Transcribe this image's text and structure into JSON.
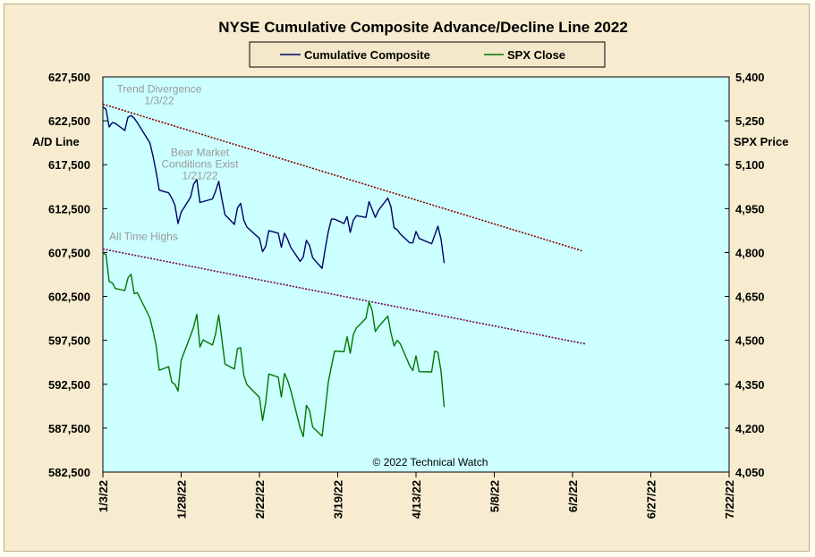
{
  "chart_data": {
    "type": "line",
    "title": "NYSE Cumulative  Composite  Advance/Decline  Line  2022",
    "ylabel_left": "A/D Line",
    "ylabel_right": "SPX Price",
    "credit": "© 2022 Technical  Watch",
    "legend": {
      "placement": "top-center"
    },
    "grid": false,
    "x_ticks": [
      "1/3/22",
      "1/28/22",
      "2/22/22",
      "3/19/22",
      "4/13/22",
      "5/8/22",
      "6/2/22",
      "6/27/22",
      "7/22/22"
    ],
    "x_range": [
      "2022-01-03",
      "2022-07-22"
    ],
    "y_left": {
      "range": [
        582500,
        627500
      ],
      "ticks": [
        "582,500",
        "587,500",
        "592,500",
        "597,500",
        "602,500",
        "607,500",
        "612,500",
        "617,500",
        "622,500",
        "627,500"
      ]
    },
    "y_right": {
      "range": [
        4050,
        5400
      ],
      "ticks": [
        "4,050",
        "4,200",
        "4,350",
        "4,500",
        "4,650",
        "4,800",
        "4,950",
        "5,100",
        "5,250",
        "5,400"
      ]
    },
    "series": [
      {
        "name": "Cumulative Composite",
        "axis": "left",
        "color": "#000066",
        "points": [
          [
            "2022-01-03",
            624100
          ],
          [
            "2022-01-04",
            623800
          ],
          [
            "2022-01-05",
            621800
          ],
          [
            "2022-01-06",
            622300
          ],
          [
            "2022-01-07",
            622200
          ],
          [
            "2022-01-10",
            621400
          ],
          [
            "2022-01-11",
            622900
          ],
          [
            "2022-01-12",
            623100
          ],
          [
            "2022-01-13",
            622800
          ],
          [
            "2022-01-14",
            622300
          ],
          [
            "2022-01-18",
            620000
          ],
          [
            "2022-01-19",
            618500
          ],
          [
            "2022-01-20",
            616700
          ],
          [
            "2022-01-21",
            614600
          ],
          [
            "2022-01-24",
            614300
          ],
          [
            "2022-01-25",
            613700
          ],
          [
            "2022-01-26",
            612900
          ],
          [
            "2022-01-27",
            610800
          ],
          [
            "2022-01-28",
            612100
          ],
          [
            "2022-01-31",
            613800
          ],
          [
            "2022-02-01",
            615300
          ],
          [
            "2022-02-02",
            615800
          ],
          [
            "2022-02-03",
            613200
          ],
          [
            "2022-02-04",
            613300
          ],
          [
            "2022-02-07",
            613600
          ],
          [
            "2022-02-08",
            614500
          ],
          [
            "2022-02-09",
            615600
          ],
          [
            "2022-02-10",
            613600
          ],
          [
            "2022-02-11",
            611800
          ],
          [
            "2022-02-14",
            610700
          ],
          [
            "2022-02-15",
            612600
          ],
          [
            "2022-02-16",
            613100
          ],
          [
            "2022-02-17",
            611200
          ],
          [
            "2022-02-18",
            610400
          ],
          [
            "2022-02-22",
            609100
          ],
          [
            "2022-02-23",
            607600
          ],
          [
            "2022-02-24",
            608200
          ],
          [
            "2022-02-25",
            610000
          ],
          [
            "2022-02-28",
            609700
          ],
          [
            "2022-03-01",
            608100
          ],
          [
            "2022-03-02",
            609700
          ],
          [
            "2022-03-03",
            609000
          ],
          [
            "2022-03-04",
            608100
          ],
          [
            "2022-03-07",
            606500
          ],
          [
            "2022-03-08",
            607000
          ],
          [
            "2022-03-09",
            608900
          ],
          [
            "2022-03-10",
            608300
          ],
          [
            "2022-03-11",
            606900
          ],
          [
            "2022-03-14",
            605700
          ],
          [
            "2022-03-15",
            607900
          ],
          [
            "2022-03-16",
            609900
          ],
          [
            "2022-03-17",
            611300
          ],
          [
            "2022-03-18",
            611300
          ],
          [
            "2022-03-21",
            610800
          ],
          [
            "2022-03-22",
            611600
          ],
          [
            "2022-03-23",
            609800
          ],
          [
            "2022-03-24",
            611200
          ],
          [
            "2022-03-25",
            611700
          ],
          [
            "2022-03-28",
            611500
          ],
          [
            "2022-03-29",
            613300
          ],
          [
            "2022-03-30",
            612400
          ],
          [
            "2022-03-31",
            611500
          ],
          [
            "2022-04-01",
            612300
          ],
          [
            "2022-04-04",
            613700
          ],
          [
            "2022-04-05",
            612700
          ],
          [
            "2022-04-06",
            610300
          ],
          [
            "2022-04-07",
            610100
          ],
          [
            "2022-04-08",
            609600
          ],
          [
            "2022-04-11",
            608600
          ],
          [
            "2022-04-12",
            608600
          ],
          [
            "2022-04-13",
            609900
          ],
          [
            "2022-04-14",
            609100
          ],
          [
            "2022-04-18",
            608500
          ],
          [
            "2022-04-19",
            609500
          ],
          [
            "2022-04-20",
            610500
          ],
          [
            "2022-04-21",
            609000
          ],
          [
            "2022-04-22",
            606300
          ]
        ]
      },
      {
        "name": "SPX Close",
        "axis": "right",
        "color": "#007700",
        "points": [
          [
            "2022-01-03",
            4797
          ],
          [
            "2022-01-04",
            4793
          ],
          [
            "2022-01-05",
            4701
          ],
          [
            "2022-01-06",
            4696
          ],
          [
            "2022-01-07",
            4677
          ],
          [
            "2022-01-10",
            4670
          ],
          [
            "2022-01-11",
            4713
          ],
          [
            "2022-01-12",
            4726
          ],
          [
            "2022-01-13",
            4659
          ],
          [
            "2022-01-14",
            4663
          ],
          [
            "2022-01-18",
            4577
          ],
          [
            "2022-01-19",
            4533
          ],
          [
            "2022-01-20",
            4483
          ],
          [
            "2022-01-21",
            4398
          ],
          [
            "2022-01-24",
            4410
          ],
          [
            "2022-01-25",
            4357
          ],
          [
            "2022-01-26",
            4350
          ],
          [
            "2022-01-27",
            4327
          ],
          [
            "2022-01-28",
            4432
          ],
          [
            "2022-01-31",
            4516
          ],
          [
            "2022-02-01",
            4546
          ],
          [
            "2022-02-02",
            4589
          ],
          [
            "2022-02-03",
            4477
          ],
          [
            "2022-02-04",
            4501
          ],
          [
            "2022-02-07",
            4484
          ],
          [
            "2022-02-08",
            4522
          ],
          [
            "2022-02-09",
            4587
          ],
          [
            "2022-02-10",
            4504
          ],
          [
            "2022-02-11",
            4419
          ],
          [
            "2022-02-14",
            4402
          ],
          [
            "2022-02-15",
            4472
          ],
          [
            "2022-02-16",
            4475
          ],
          [
            "2022-02-17",
            4381
          ],
          [
            "2022-02-18",
            4349
          ],
          [
            "2022-02-22",
            4305
          ],
          [
            "2022-02-23",
            4226
          ],
          [
            "2022-02-24",
            4288
          ],
          [
            "2022-02-25",
            4385
          ],
          [
            "2022-02-28",
            4374
          ],
          [
            "2022-03-01",
            4306
          ],
          [
            "2022-03-02",
            4387
          ],
          [
            "2022-03-03",
            4363
          ],
          [
            "2022-03-04",
            4329
          ],
          [
            "2022-03-07",
            4201
          ],
          [
            "2022-03-08",
            4171
          ],
          [
            "2022-03-09",
            4278
          ],
          [
            "2022-03-10",
            4260
          ],
          [
            "2022-03-11",
            4204
          ],
          [
            "2022-03-14",
            4173
          ],
          [
            "2022-03-15",
            4262
          ],
          [
            "2022-03-16",
            4358
          ],
          [
            "2022-03-17",
            4412
          ],
          [
            "2022-03-18",
            4463
          ],
          [
            "2022-03-21",
            4461
          ],
          [
            "2022-03-22",
            4512
          ],
          [
            "2022-03-23",
            4456
          ],
          [
            "2022-03-24",
            4520
          ],
          [
            "2022-03-25",
            4543
          ],
          [
            "2022-03-28",
            4575
          ],
          [
            "2022-03-29",
            4632
          ],
          [
            "2022-03-30",
            4602
          ],
          [
            "2022-03-31",
            4530
          ],
          [
            "2022-04-01",
            4546
          ],
          [
            "2022-04-04",
            4583
          ],
          [
            "2022-04-05",
            4525
          ],
          [
            "2022-04-06",
            4481
          ],
          [
            "2022-04-07",
            4500
          ],
          [
            "2022-04-08",
            4488
          ],
          [
            "2022-04-11",
            4413
          ],
          [
            "2022-04-12",
            4397
          ],
          [
            "2022-04-13",
            4447
          ],
          [
            "2022-04-14",
            4393
          ],
          [
            "2022-04-18",
            4392
          ],
          [
            "2022-04-19",
            4463
          ],
          [
            "2022-04-20",
            4459
          ],
          [
            "2022-04-21",
            4394
          ],
          [
            "2022-04-22",
            4272
          ]
        ]
      }
    ],
    "trendlines": [
      {
        "color": "#880000",
        "axis": "left",
        "from": [
          "2022-01-03",
          624400
        ],
        "to": [
          "2022-06-05",
          607700
        ]
      },
      {
        "color": "#770055",
        "axis": "left",
        "from": [
          "2022-01-03",
          607900
        ],
        "to": [
          "2022-06-06",
          597100
        ]
      }
    ],
    "annotations": [
      {
        "lines": [
          "Trend  Divergence",
          "1/3/22"
        ],
        "at": [
          "2022-01-21",
          625700
        ]
      },
      {
        "lines": [
          "Bear Market",
          "Conditions Exist",
          "1/21/22"
        ],
        "at": [
          "2022-02-03",
          618500
        ]
      },
      {
        "lines": [
          "All Time  Highs"
        ],
        "at": [
          "2022-01-16",
          608900
        ]
      }
    ]
  }
}
